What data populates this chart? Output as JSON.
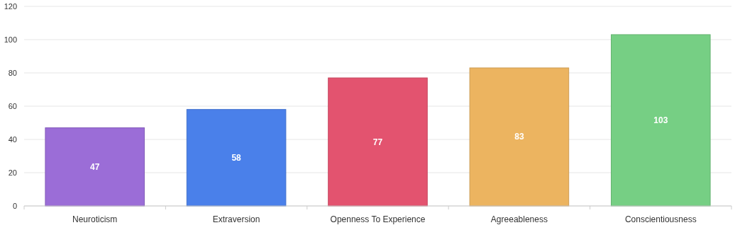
{
  "chart_data": {
    "type": "bar",
    "categories": [
      "Neuroticism",
      "Extraversion",
      "Openness To Experience",
      "Agreeableness",
      "Conscientiousness"
    ],
    "values": [
      47,
      58,
      77,
      83,
      103
    ],
    "colors": [
      "#9b6dd7",
      "#4a80ea",
      "#e3536f",
      "#ecb460",
      "#76cf84"
    ],
    "ylim": [
      0,
      120
    ],
    "yticks": [
      0,
      20,
      40,
      60,
      80,
      100,
      120
    ],
    "grid": "y",
    "data_labels": true
  }
}
